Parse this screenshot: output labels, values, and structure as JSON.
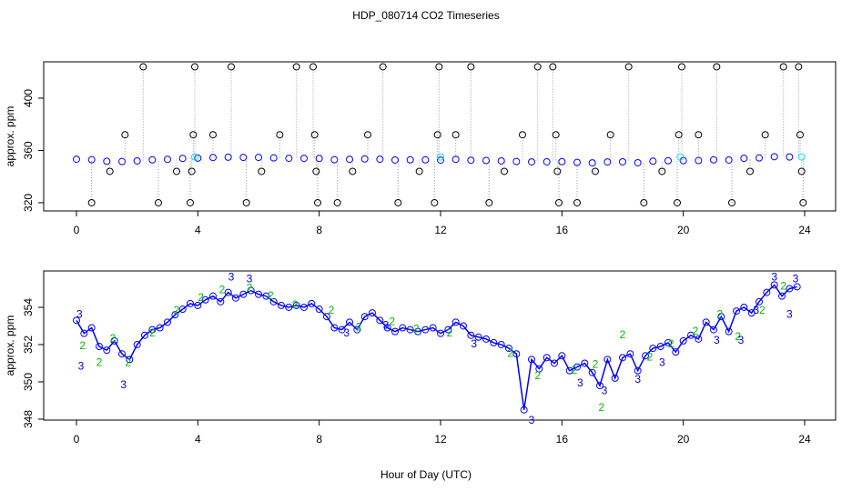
{
  "title": "HDP_080714  CO2 Timeseries",
  "x_label": "Hour of Day (UTC)",
  "chart_data": [
    {
      "type": "scatter",
      "y_label": "approx. ppm",
      "xlim": [
        -1.08,
        25.02
      ],
      "xticks": [
        0,
        4,
        8,
        12,
        16,
        20,
        24
      ],
      "ylim": [
        313.7,
        427.8
      ],
      "yticks": [
        320,
        360,
        400
      ],
      "series": [
        {
          "color": "#0000ff",
          "marker": "circle",
          "x": [
            0,
            0.5,
            1,
            1.5,
            2,
            2.5,
            3,
            3.5,
            4,
            4.5,
            5,
            5.5,
            6,
            6.5,
            7,
            7.5,
            8,
            8.5,
            9,
            9.5,
            10,
            10.5,
            11,
            11.5,
            12,
            12.5,
            13,
            13.5,
            14,
            14.5,
            15,
            15.5,
            16,
            16.5,
            17,
            17.5,
            18,
            18.5,
            19,
            19.5,
            20,
            20.5,
            21,
            21.5,
            22,
            22.5,
            23,
            23.5
          ],
          "values": [
            353.3,
            352.9,
            351.7,
            351.5,
            352.0,
            352.8,
            353.2,
            353.9,
            354.1,
            354.6,
            354.8,
            354.7,
            354.7,
            354.3,
            354.0,
            354.0,
            353.9,
            352.9,
            353.2,
            353.5,
            353.3,
            352.7,
            352.8,
            352.8,
            352.6,
            353.2,
            352.5,
            352.3,
            352.0,
            351.5,
            351.2,
            351.3,
            351.4,
            350.8,
            350.5,
            351.2,
            351.3,
            350.6,
            351.8,
            352.1,
            352.2,
            352.3,
            352.8,
            352.7,
            354.0,
            354.3,
            355.2,
            355.0
          ]
        },
        {
          "color": "#000000",
          "marker": "circle",
          "line_style": "spike",
          "line_color": "#999999",
          "x": [
            0.5,
            1.1,
            1.6,
            2.2,
            2.7,
            3.3,
            3.75,
            3.8,
            3.85,
            3.9,
            4.5,
            5.1,
            5.6,
            6.1,
            6.7,
            7.25,
            7.8,
            7.85,
            7.9,
            7.95,
            8.6,
            9.1,
            9.6,
            10.1,
            10.6,
            11.3,
            11.8,
            11.9,
            11.95,
            12.5,
            13.0,
            13.6,
            14.1,
            14.7,
            15.2,
            15.7,
            15.8,
            15.85,
            15.9,
            16.5,
            17.1,
            17.6,
            18.2,
            18.7,
            19.3,
            19.8,
            19.85,
            19.95,
            20.5,
            21.1,
            21.6,
            22.2,
            22.7,
            23.3,
            23.8,
            23.85,
            23.9,
            23.95
          ],
          "values": [
            320,
            344,
            372,
            424,
            320,
            344,
            320,
            344,
            372,
            424,
            372,
            424,
            320,
            344,
            372,
            424,
            424,
            372,
            344,
            320,
            320,
            344,
            372,
            424,
            320,
            344,
            320,
            372,
            424,
            372,
            424,
            320,
            344,
            372,
            424,
            424,
            372,
            344,
            320,
            320,
            344,
            372,
            424,
            320,
            344,
            320,
            372,
            424,
            372,
            424,
            320,
            344,
            372,
            424,
            424,
            372,
            344,
            320
          ]
        },
        {
          "color": "#00e5ee",
          "marker": "circle",
          "x": [
            3.9,
            12.0,
            19.9,
            23.9
          ],
          "values": [
            355,
            355,
            355,
            355
          ]
        }
      ]
    },
    {
      "type": "line",
      "y_label": "approx. ppm",
      "xlim": [
        -1.08,
        25.02
      ],
      "xticks": [
        0,
        4,
        8,
        12,
        16,
        20,
        24
      ],
      "ylim": [
        347.95,
        355.95
      ],
      "yticks": [
        348,
        350,
        352,
        354
      ],
      "series": [
        {
          "color": "#0000ff",
          "marker": "circle",
          "line": true,
          "x": [
            0,
            0.25,
            0.5,
            0.75,
            1,
            1.25,
            1.5,
            1.75,
            2,
            2.25,
            2.5,
            2.75,
            3,
            3.25,
            3.5,
            3.75,
            4,
            4.25,
            4.5,
            4.75,
            5,
            5.25,
            5.5,
            5.75,
            6,
            6.25,
            6.5,
            6.75,
            7,
            7.25,
            7.5,
            7.75,
            8,
            8.25,
            8.5,
            8.75,
            9,
            9.25,
            9.5,
            9.75,
            10,
            10.25,
            10.5,
            10.75,
            11,
            11.25,
            11.5,
            11.75,
            12,
            12.25,
            12.5,
            12.75,
            13,
            13.25,
            13.5,
            13.75,
            14,
            14.25,
            14.5,
            14.75,
            15,
            15.25,
            15.5,
            15.75,
            16,
            16.25,
            16.5,
            16.75,
            17,
            17.25,
            17.5,
            17.75,
            18,
            18.25,
            18.5,
            18.75,
            19,
            19.25,
            19.5,
            19.75,
            20,
            20.25,
            20.5,
            20.75,
            21,
            21.25,
            21.5,
            21.75,
            22,
            22.25,
            22.5,
            22.75,
            23,
            23.25,
            23.5,
            23.75
          ],
          "values": [
            353.3,
            352.6,
            352.9,
            351.9,
            351.7,
            352.2,
            351.5,
            351.2,
            352.0,
            352.5,
            352.8,
            352.9,
            353.2,
            353.6,
            353.9,
            354.2,
            354.1,
            354.4,
            354.6,
            354.3,
            354.8,
            354.5,
            354.7,
            354.9,
            354.7,
            354.6,
            354.3,
            354.1,
            354.0,
            354.1,
            354.0,
            354.2,
            353.9,
            353.5,
            352.9,
            352.8,
            353.2,
            352.8,
            353.5,
            353.7,
            353.3,
            352.9,
            352.7,
            352.9,
            352.8,
            352.7,
            352.8,
            352.9,
            352.6,
            352.8,
            353.2,
            353.0,
            352.5,
            352.4,
            352.3,
            352.1,
            352.0,
            351.8,
            351.5,
            348.5,
            351.2,
            350.7,
            351.3,
            351.0,
            351.4,
            350.6,
            350.8,
            351.0,
            350.5,
            349.8,
            351.2,
            350.2,
            351.3,
            351.5,
            350.6,
            351.4,
            351.8,
            351.9,
            352.1,
            351.6,
            352.2,
            352.5,
            352.3,
            353.2,
            352.8,
            353.5,
            352.7,
            353.8,
            354.0,
            353.7,
            354.3,
            354.8,
            355.2,
            354.6,
            355.0,
            355.1
          ]
        },
        {
          "color": "#00bb00",
          "marker_label": "2",
          "x": [
            0.2,
            0.75,
            1.2,
            1.7,
            2.5,
            3.3,
            4.1,
            4.8,
            5.7,
            6.4,
            7.2,
            8.4,
            9.3,
            10.4,
            11.2,
            12.3,
            14.3,
            15.2,
            16.4,
            17.1,
            17.3,
            18.0,
            18.9,
            19.6,
            20.4,
            21.2,
            21.8,
            22.6,
            23.3
          ],
          "values": [
            351.9,
            351.0,
            352.3,
            351.0,
            352.6,
            353.8,
            354.5,
            354.9,
            355.0,
            354.6,
            354.1,
            353.8,
            352.9,
            353.2,
            352.8,
            352.6,
            351.5,
            350.3,
            350.6,
            350.9,
            348.6,
            352.5,
            351.3,
            352.0,
            352.7,
            353.6,
            352.4,
            353.8,
            355.1
          ]
        },
        {
          "color": "#0000cc",
          "marker_label": "3",
          "x": [
            0.1,
            0.15,
            1.55,
            5.1,
            5.7,
            8.9,
            10.2,
            13.1,
            15.0,
            16.6,
            17.4,
            18.5,
            19.3,
            21.1,
            21.9,
            22.4,
            23.0,
            23.5,
            23.7
          ],
          "values": [
            353.6,
            350.8,
            349.8,
            355.6,
            355.5,
            352.6,
            353.0,
            352.0,
            347.9,
            349.9,
            349.5,
            350.1,
            351.0,
            352.2,
            352.2,
            353.8,
            355.6,
            353.6,
            355.5
          ]
        }
      ]
    }
  ]
}
